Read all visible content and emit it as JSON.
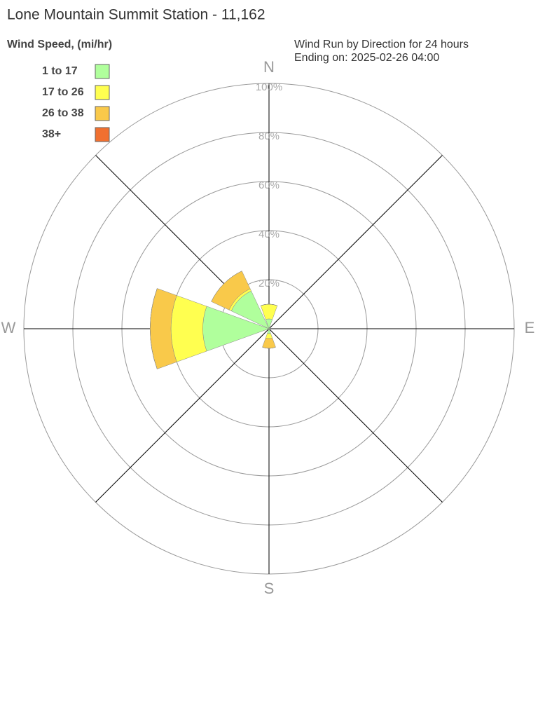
{
  "chart_data": {
    "type": "windrose",
    "title": "Lone Mountain Summit Station - 11,162",
    "subtitle": [
      "Wind Run by Direction for 24 hours",
      "Ending on: 2025-02-26 04:00"
    ],
    "legend_title": "Wind Speed, (mi/hr)",
    "categories": [
      "N",
      null,
      "E",
      null,
      "S",
      null,
      "W",
      null
    ],
    "series": [
      {
        "name": "1 to 17",
        "color": "#b0ff9c",
        "values": [
          4,
          0.5,
          0.5,
          0.5,
          2,
          0.5,
          27,
          17
        ]
      },
      {
        "name": "17 to 26",
        "color": "#ffff50",
        "values": [
          6,
          0,
          0,
          0,
          2,
          0,
          13,
          1
        ]
      },
      {
        "name": "26 to 38",
        "color": "#f9c94a",
        "values": [
          0,
          0,
          0,
          0,
          4,
          0,
          8.5,
          8
        ]
      },
      {
        "name": "38+",
        "color": "#f07030",
        "values": [
          0,
          0,
          0,
          0,
          0,
          0,
          0,
          0
        ]
      }
    ],
    "rlim": [
      0,
      100
    ],
    "rticks": [
      {
        "value": 20,
        "label": "20%"
      },
      {
        "value": 40,
        "label": "40%"
      },
      {
        "value": 60,
        "label": "60%"
      },
      {
        "value": 80,
        "label": "80%"
      },
      {
        "value": 100,
        "label": "100%"
      }
    ],
    "grid": true
  }
}
